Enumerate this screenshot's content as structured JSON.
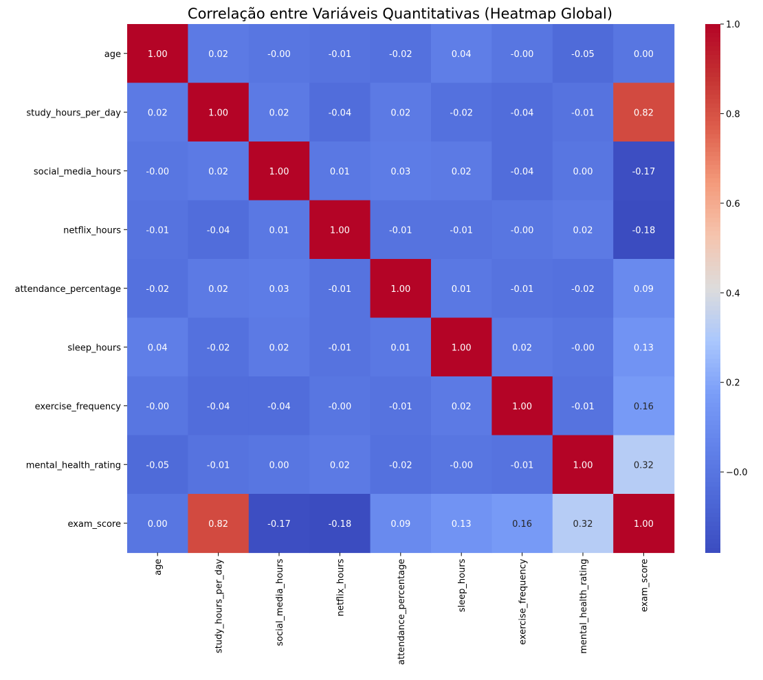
{
  "chart_data": {
    "type": "heatmap",
    "title": "Correlação entre Variáveis Quantitativas (Heatmap Global)",
    "labels": [
      "age",
      "study_hours_per_day",
      "social_media_hours",
      "netflix_hours",
      "attendance_percentage",
      "sleep_hours",
      "exercise_frequency",
      "mental_health_rating",
      "exam_score"
    ],
    "values": [
      [
        1.0,
        0.02,
        -0.0,
        -0.01,
        -0.02,
        0.04,
        -0.0,
        -0.05,
        0.0
      ],
      [
        0.02,
        1.0,
        0.02,
        -0.04,
        0.02,
        -0.02,
        -0.04,
        -0.01,
        0.82
      ],
      [
        -0.0,
        0.02,
        1.0,
        0.01,
        0.03,
        0.02,
        -0.04,
        0.0,
        -0.17
      ],
      [
        -0.01,
        -0.04,
        0.01,
        1.0,
        -0.01,
        -0.01,
        -0.0,
        0.02,
        -0.18
      ],
      [
        -0.02,
        0.02,
        0.03,
        -0.01,
        1.0,
        0.01,
        -0.01,
        -0.02,
        0.09
      ],
      [
        0.04,
        -0.02,
        0.02,
        -0.01,
        0.01,
        1.0,
        0.02,
        -0.0,
        0.13
      ],
      [
        -0.0,
        -0.04,
        -0.04,
        -0.0,
        -0.01,
        0.02,
        1.0,
        -0.01,
        0.16
      ],
      [
        -0.05,
        -0.01,
        0.0,
        0.02,
        -0.02,
        -0.0,
        -0.01,
        1.0,
        0.32
      ],
      [
        0.0,
        0.82,
        -0.17,
        -0.18,
        0.09,
        0.13,
        0.16,
        0.32,
        1.0
      ]
    ],
    "display_values": [
      [
        "1.00",
        "0.02",
        "-0.00",
        "-0.01",
        "-0.02",
        "0.04",
        "-0.00",
        "-0.05",
        "0.00"
      ],
      [
        "0.02",
        "1.00",
        "0.02",
        "-0.04",
        "0.02",
        "-0.02",
        "-0.04",
        "-0.01",
        "0.82"
      ],
      [
        "-0.00",
        "0.02",
        "1.00",
        "0.01",
        "0.03",
        "0.02",
        "-0.04",
        "0.00",
        "-0.17"
      ],
      [
        "-0.01",
        "-0.04",
        "0.01",
        "1.00",
        "-0.01",
        "-0.01",
        "-0.00",
        "0.02",
        "-0.18"
      ],
      [
        "-0.02",
        "0.02",
        "0.03",
        "-0.01",
        "1.00",
        "0.01",
        "-0.01",
        "-0.02",
        "0.09"
      ],
      [
        "0.04",
        "-0.02",
        "0.02",
        "-0.01",
        "0.01",
        "1.00",
        "0.02",
        "-0.00",
        "0.13"
      ],
      [
        "-0.00",
        "-0.04",
        "-0.04",
        "-0.00",
        "-0.01",
        "0.02",
        "1.00",
        "-0.01",
        "0.16"
      ],
      [
        "-0.05",
        "-0.01",
        "0.00",
        "0.02",
        "-0.02",
        "-0.00",
        "-0.01",
        "1.00",
        "0.32"
      ],
      [
        "0.00",
        "0.82",
        "-0.17",
        "-0.18",
        "0.09",
        "0.13",
        "0.16",
        "0.32",
        "1.00"
      ]
    ],
    "colormap": "coolwarm",
    "vmin": -0.18,
    "vmax": 1.0,
    "colorbar_ticks": [
      -0.0,
      0.2,
      0.4,
      0.6,
      0.8,
      1.0
    ],
    "colorbar_tick_labels": [
      "−0.0",
      "0.2",
      "0.4",
      "0.6",
      "0.8",
      "1.0"
    ]
  }
}
